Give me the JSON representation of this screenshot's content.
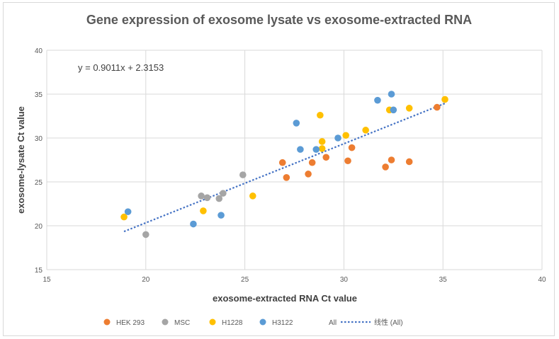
{
  "chart_data": {
    "type": "scatter",
    "title": "Gene expression of exosome lysate vs exosome-extracted RNA",
    "xlabel": "exosome-extracted RNA Ct value",
    "ylabel": "exosome-lysate Ct value",
    "xlim": [
      15,
      40
    ],
    "ylim": [
      15,
      40
    ],
    "xticks": [
      "15",
      "20",
      "25",
      "30",
      "35",
      "40"
    ],
    "yticks": [
      "15",
      "20",
      "25",
      "30",
      "35",
      "40"
    ],
    "grid": true,
    "legend_position": "bottom",
    "equation": "y = 0.9011x + 2.3153",
    "series": [
      {
        "name": "HEK 293",
        "color": "#ED7D31",
        "points": [
          [
            26.9,
            27.2
          ],
          [
            27.1,
            25.5
          ],
          [
            28.2,
            25.9
          ],
          [
            28.4,
            27.2
          ],
          [
            29.1,
            27.8
          ],
          [
            30.2,
            27.4
          ],
          [
            30.4,
            28.9
          ],
          [
            32.1,
            26.7
          ],
          [
            32.4,
            27.5
          ],
          [
            33.3,
            27.3
          ],
          [
            34.7,
            33.5
          ]
        ]
      },
      {
        "name": "MSC",
        "color": "#A5A5A5",
        "points": [
          [
            20.0,
            19.0
          ],
          [
            22.8,
            23.4
          ],
          [
            23.1,
            23.2
          ],
          [
            23.7,
            23.1
          ],
          [
            23.9,
            23.7
          ],
          [
            24.9,
            25.8
          ]
        ]
      },
      {
        "name": "H1228",
        "color": "#FFC000",
        "points": [
          [
            18.9,
            21.0
          ],
          [
            22.9,
            21.7
          ],
          [
            25.4,
            23.4
          ],
          [
            28.8,
            32.6
          ],
          [
            28.9,
            28.8
          ],
          [
            28.9,
            29.6
          ],
          [
            30.1,
            30.3
          ],
          [
            31.1,
            30.9
          ],
          [
            32.3,
            33.2
          ],
          [
            33.3,
            33.4
          ],
          [
            35.1,
            34.4
          ]
        ]
      },
      {
        "name": "H3122",
        "color": "#5B9BD5",
        "points": [
          [
            19.1,
            21.6
          ],
          [
            22.4,
            20.2
          ],
          [
            23.8,
            21.2
          ],
          [
            27.6,
            31.7
          ],
          [
            27.8,
            28.7
          ],
          [
            28.6,
            28.7
          ],
          [
            29.7,
            30.0
          ],
          [
            31.7,
            34.3
          ],
          [
            32.4,
            35.0
          ],
          [
            32.5,
            33.2
          ]
        ]
      }
    ],
    "trendline": {
      "legend_label": "All",
      "name": "线性 (All)",
      "color": "#4472C4",
      "slope": 0.9011,
      "intercept": 2.3153,
      "x_range": [
        18.9,
        35.1
      ]
    }
  }
}
